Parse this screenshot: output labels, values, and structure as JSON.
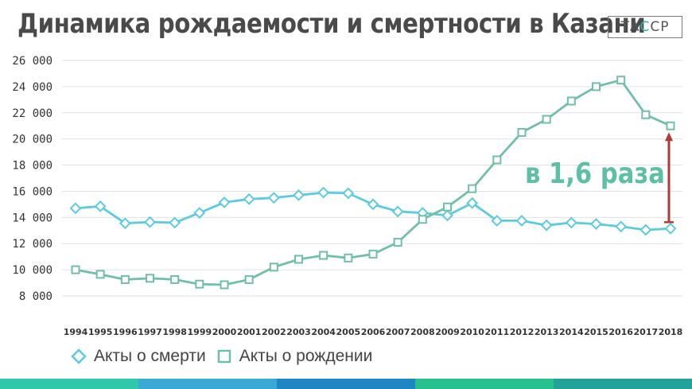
{
  "title": "Динамика рождаемости и смертности в Казани",
  "logo": {
    "prefix": "ТА",
    "accent": "С",
    "suffix": "СР"
  },
  "annotation": "в 1,6 раза",
  "colors": {
    "deaths": "#5ccbe0",
    "births": "#6fc0a4",
    "arrow": "#b23a36",
    "grid": "#e2e2e2",
    "bar": [
      "#2fc8aa",
      "#39a9d6",
      "#1f86c3",
      "#27c18f",
      "#21a39a"
    ]
  },
  "chart_data": {
    "type": "line",
    "x": [
      "1994",
      "1995",
      "1996",
      "1997",
      "1998",
      "1999",
      "2000",
      "2001",
      "2002",
      "2003",
      "2004",
      "2005",
      "2006",
      "2007",
      "2008",
      "2009",
      "2010",
      "2011",
      "2012",
      "2013",
      "2014",
      "2015",
      "2016",
      "2017",
      "2018"
    ],
    "ylim": [
      8000,
      26000
    ],
    "yticks": [
      "8 000",
      "10 000",
      "12 000",
      "14 000",
      "16 000",
      "18 000",
      "20 000",
      "22 000",
      "24 000",
      "26 000"
    ],
    "grid": true,
    "legend": "bottom-left",
    "series": [
      {
        "name": "Акты о смерти",
        "marker": "diamond",
        "values": [
          14700,
          14850,
          13550,
          13650,
          13600,
          14350,
          15150,
          15400,
          15500,
          15700,
          15900,
          15850,
          15000,
          14450,
          14350,
          14150,
          15100,
          13750,
          13750,
          13400,
          13600,
          13500,
          13300,
          13050,
          13150
        ]
      },
      {
        "name": "Акты о рождении",
        "marker": "square",
        "values": [
          10000,
          9650,
          9250,
          9350,
          9250,
          8900,
          8850,
          9250,
          10200,
          10800,
          11100,
          10900,
          11200,
          12100,
          13850,
          14800,
          16200,
          18400,
          20500,
          21500,
          22900,
          24000,
          24500,
          21850,
          21000
        ]
      }
    ]
  }
}
